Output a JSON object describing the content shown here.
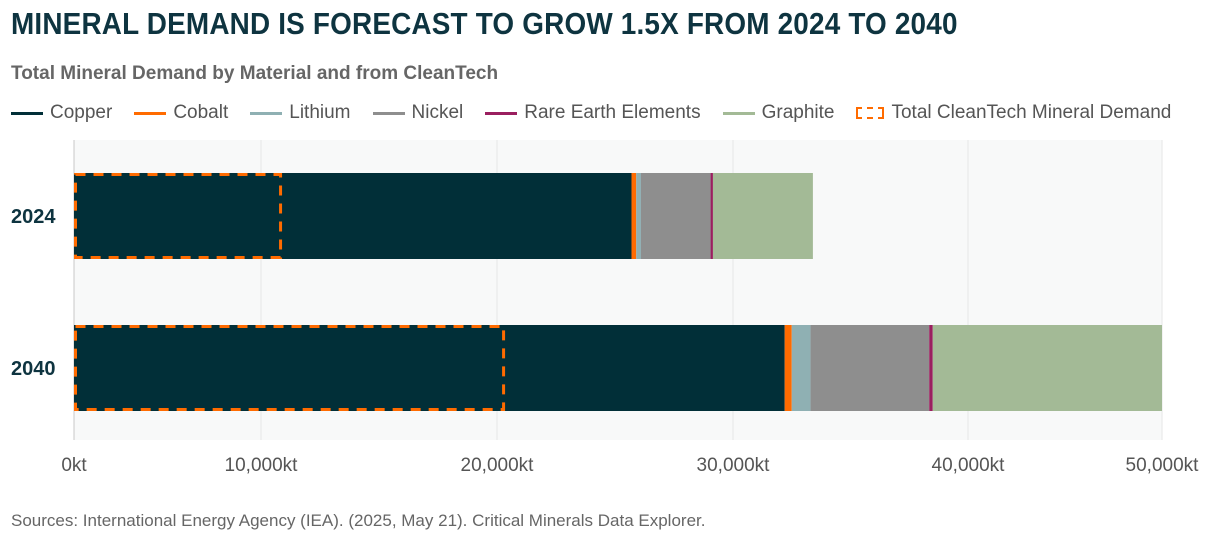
{
  "title": "MINERAL DEMAND IS FORECAST TO GROW 1.5X FROM 2024 TO 2040",
  "source": "Sources: International Energy Agency (IEA). (2025, May 21). Critical Minerals Data Explorer.",
  "chart_data": {
    "type": "bar",
    "orientation": "horizontal",
    "stacked": true,
    "title": "Total Mineral Demand by Material and from CleanTech",
    "categories": [
      "2024",
      "2040"
    ],
    "series": [
      {
        "name": "Copper",
        "color": "#012f38",
        "values": [
          25700,
          32200
        ]
      },
      {
        "name": "Cobalt",
        "color": "#ff6b00",
        "values": [
          200,
          300
        ]
      },
      {
        "name": "Lithium",
        "color": "#8fb0b3",
        "values": [
          200,
          800
        ]
      },
      {
        "name": "Nickel",
        "color": "#8e8e8e",
        "values": [
          2950,
          5050
        ]
      },
      {
        "name": "Rare Earth Elements",
        "color": "#9a1f5f",
        "values": [
          100,
          150
        ]
      },
      {
        "name": "Graphite",
        "color": "#a3ba96",
        "values": [
          4250,
          11500
        ]
      }
    ],
    "overlay": {
      "name": "Total CleanTech Mineral Demand",
      "color": "#ff6b00",
      "style": "dashed-outline",
      "values": [
        10850,
        20300
      ]
    },
    "xlim": [
      0,
      50000
    ],
    "xticks": [
      0,
      10000,
      20000,
      30000,
      40000,
      50000
    ],
    "xtick_labels": [
      "0kt",
      "10,000kt",
      "20,000kt",
      "30,000kt",
      "40,000kt",
      "50,000kt"
    ],
    "grid": "vertical",
    "legend": "top"
  }
}
